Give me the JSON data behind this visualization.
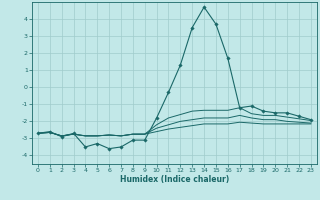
{
  "xlabel": "Humidex (Indice chaleur)",
  "background_color": "#c2e8e8",
  "grid_color": "#a0cccc",
  "line_color": "#1a6868",
  "xlim": [
    -0.5,
    23.5
  ],
  "ylim": [
    -4.5,
    5.0
  ],
  "xticks": [
    0,
    1,
    2,
    3,
    4,
    5,
    6,
    7,
    8,
    9,
    10,
    11,
    12,
    13,
    14,
    15,
    16,
    17,
    18,
    19,
    20,
    21,
    22,
    23
  ],
  "yticks": [
    -4,
    -3,
    -2,
    -1,
    0,
    1,
    2,
    3,
    4
  ],
  "line1_x": [
    0,
    1,
    2,
    3,
    4,
    5,
    6,
    7,
    8,
    9,
    10,
    11,
    12,
    13,
    14,
    15,
    16,
    17,
    18,
    19,
    20,
    21,
    22,
    23
  ],
  "line1_y": [
    -2.7,
    -2.6,
    -2.9,
    -2.7,
    -3.5,
    -3.3,
    -3.6,
    -3.5,
    -3.1,
    -3.1,
    -1.8,
    -0.3,
    1.3,
    3.5,
    4.7,
    3.7,
    1.7,
    -1.2,
    -1.1,
    -1.4,
    -1.5,
    -1.5,
    -1.7,
    -1.9
  ],
  "line2_x": [
    0,
    1,
    2,
    3,
    4,
    5,
    6,
    7,
    8,
    9,
    10,
    11,
    12,
    13,
    14,
    15,
    16,
    17,
    18,
    19,
    20,
    21,
    22,
    23
  ],
  "line2_y": [
    -2.7,
    -2.65,
    -2.85,
    -2.75,
    -2.85,
    -2.85,
    -2.8,
    -2.85,
    -2.75,
    -2.75,
    -2.2,
    -1.8,
    -1.6,
    -1.4,
    -1.35,
    -1.35,
    -1.35,
    -1.2,
    -1.55,
    -1.65,
    -1.65,
    -1.75,
    -1.85,
    -1.95
  ],
  "line3_x": [
    0,
    1,
    2,
    3,
    4,
    5,
    6,
    7,
    8,
    9,
    10,
    11,
    12,
    13,
    14,
    15,
    16,
    17,
    18,
    19,
    20,
    21,
    22,
    23
  ],
  "line3_y": [
    -2.7,
    -2.65,
    -2.85,
    -2.75,
    -2.85,
    -2.85,
    -2.8,
    -2.85,
    -2.75,
    -2.75,
    -2.4,
    -2.2,
    -2.0,
    -1.9,
    -1.8,
    -1.8,
    -1.8,
    -1.65,
    -1.8,
    -1.9,
    -1.9,
    -2.0,
    -2.05,
    -2.1
  ],
  "line4_x": [
    0,
    1,
    2,
    3,
    4,
    5,
    6,
    7,
    8,
    9,
    10,
    11,
    12,
    13,
    14,
    15,
    16,
    17,
    18,
    19,
    20,
    21,
    22,
    23
  ],
  "line4_y": [
    -2.7,
    -2.65,
    -2.85,
    -2.75,
    -2.85,
    -2.85,
    -2.8,
    -2.85,
    -2.75,
    -2.75,
    -2.6,
    -2.45,
    -2.35,
    -2.25,
    -2.15,
    -2.15,
    -2.15,
    -2.05,
    -2.1,
    -2.15,
    -2.15,
    -2.15,
    -2.15,
    -2.15
  ]
}
